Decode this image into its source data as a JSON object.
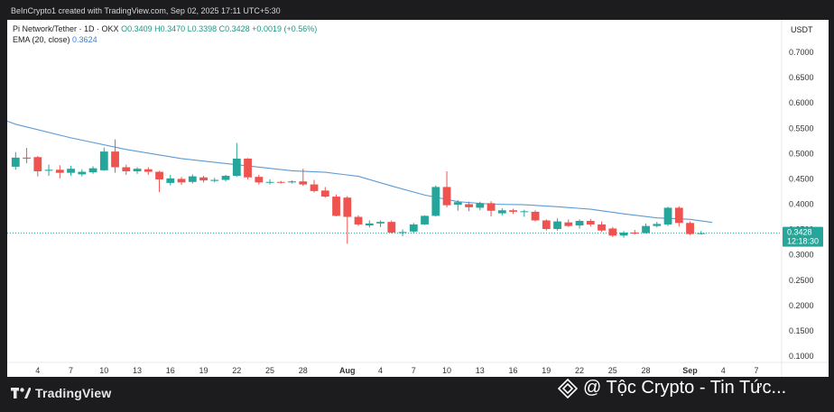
{
  "header": {
    "source_line": "BeInCrypto1 created with TradingView.com, Sep 02, 2025 17:11 UTC+5:30",
    "currency": "USDT"
  },
  "legend": {
    "symbol": "Pi Network/Tether · 1D · OKX",
    "ohlc": "O0.3409 H0.3470 L0.3398 C0.3428 +0.0019 (+0.56%)",
    "ema_label": "EMA (20, close)",
    "ema_value": "0.3624"
  },
  "price_tag": {
    "price": "0.3428",
    "countdown": "12:18:30"
  },
  "footer": {
    "brand": "TradingView",
    "watermark": "@ Tộc Crypto - Tin Tức..."
  },
  "colors": {
    "up": "#26a69a",
    "down": "#ef5350",
    "ema": "#5b9bd5",
    "price_line": "#26a69a"
  },
  "chart_data": {
    "type": "candlestick",
    "pair": "PI/USDT",
    "interval": "1D",
    "ylim": [
      0.09,
      0.77
    ],
    "y_ticks": [
      "0.1000",
      "0.1500",
      "0.2000",
      "0.2500",
      "0.3000",
      "0.3500",
      "0.4000",
      "0.4500",
      "0.5000",
      "0.5500",
      "0.6000",
      "0.6500",
      "0.7000"
    ],
    "x_ticks": [
      {
        "label": "4",
        "index": 2
      },
      {
        "label": "7",
        "index": 5
      },
      {
        "label": "10",
        "index": 8
      },
      {
        "label": "13",
        "index": 11
      },
      {
        "label": "16",
        "index": 14
      },
      {
        "label": "19",
        "index": 17
      },
      {
        "label": "22",
        "index": 20
      },
      {
        "label": "25",
        "index": 23
      },
      {
        "label": "28",
        "index": 26
      },
      {
        "label": "Aug",
        "index": 30
      },
      {
        "label": "4",
        "index": 33
      },
      {
        "label": "7",
        "index": 36
      },
      {
        "label": "10",
        "index": 39
      },
      {
        "label": "13",
        "index": 42
      },
      {
        "label": "16",
        "index": 45
      },
      {
        "label": "19",
        "index": 48
      },
      {
        "label": "22",
        "index": 51
      },
      {
        "label": "25",
        "index": 54
      },
      {
        "label": "28",
        "index": 57
      },
      {
        "label": "Sep",
        "index": 61
      },
      {
        "label": "4",
        "index": 64
      },
      {
        "label": "7",
        "index": 67
      }
    ],
    "candles": [
      {
        "o": 0.474,
        "h": 0.503,
        "l": 0.468,
        "c": 0.492
      },
      {
        "o": 0.492,
        "h": 0.511,
        "l": 0.481,
        "c": 0.49
      },
      {
        "o": 0.493,
        "h": 0.495,
        "l": 0.455,
        "c": 0.465
      },
      {
        "o": 0.466,
        "h": 0.478,
        "l": 0.456,
        "c": 0.468
      },
      {
        "o": 0.468,
        "h": 0.477,
        "l": 0.451,
        "c": 0.462
      },
      {
        "o": 0.462,
        "h": 0.476,
        "l": 0.456,
        "c": 0.47
      },
      {
        "o": 0.459,
        "h": 0.469,
        "l": 0.455,
        "c": 0.464
      },
      {
        "o": 0.463,
        "h": 0.475,
        "l": 0.46,
        "c": 0.471
      },
      {
        "o": 0.467,
        "h": 0.512,
        "l": 0.466,
        "c": 0.504
      },
      {
        "o": 0.504,
        "h": 0.528,
        "l": 0.462,
        "c": 0.473
      },
      {
        "o": 0.473,
        "h": 0.478,
        "l": 0.458,
        "c": 0.465
      },
      {
        "o": 0.465,
        "h": 0.473,
        "l": 0.46,
        "c": 0.47
      },
      {
        "o": 0.469,
        "h": 0.473,
        "l": 0.458,
        "c": 0.464
      },
      {
        "o": 0.464,
        "h": 0.466,
        "l": 0.424,
        "c": 0.449
      },
      {
        "o": 0.442,
        "h": 0.458,
        "l": 0.437,
        "c": 0.451
      },
      {
        "o": 0.45,
        "h": 0.454,
        "l": 0.438,
        "c": 0.443
      },
      {
        "o": 0.444,
        "h": 0.459,
        "l": 0.441,
        "c": 0.455
      },
      {
        "o": 0.453,
        "h": 0.456,
        "l": 0.443,
        "c": 0.447
      },
      {
        "o": 0.446,
        "h": 0.452,
        "l": 0.443,
        "c": 0.448
      },
      {
        "o": 0.448,
        "h": 0.458,
        "l": 0.445,
        "c": 0.456
      },
      {
        "o": 0.456,
        "h": 0.521,
        "l": 0.454,
        "c": 0.49
      },
      {
        "o": 0.49,
        "h": 0.491,
        "l": 0.449,
        "c": 0.453
      },
      {
        "o": 0.454,
        "h": 0.458,
        "l": 0.439,
        "c": 0.443
      },
      {
        "o": 0.443,
        "h": 0.449,
        "l": 0.439,
        "c": 0.444
      },
      {
        "o": 0.444,
        "h": 0.446,
        "l": 0.441,
        "c": 0.443
      },
      {
        "o": 0.443,
        "h": 0.447,
        "l": 0.441,
        "c": 0.445
      },
      {
        "o": 0.445,
        "h": 0.47,
        "l": 0.436,
        "c": 0.439
      },
      {
        "o": 0.439,
        "h": 0.448,
        "l": 0.423,
        "c": 0.426
      },
      {
        "o": 0.427,
        "h": 0.434,
        "l": 0.413,
        "c": 0.415
      },
      {
        "o": 0.415,
        "h": 0.419,
        "l": 0.376,
        "c": 0.377
      },
      {
        "o": 0.413,
        "h": 0.416,
        "l": 0.322,
        "c": 0.375
      },
      {
        "o": 0.375,
        "h": 0.378,
        "l": 0.357,
        "c": 0.36
      },
      {
        "o": 0.358,
        "h": 0.368,
        "l": 0.354,
        "c": 0.362
      },
      {
        "o": 0.362,
        "h": 0.368,
        "l": 0.355,
        "c": 0.365
      },
      {
        "o": 0.365,
        "h": 0.368,
        "l": 0.342,
        "c": 0.344
      },
      {
        "o": 0.343,
        "h": 0.35,
        "l": 0.337,
        "c": 0.345
      },
      {
        "o": 0.346,
        "h": 0.363,
        "l": 0.344,
        "c": 0.36
      },
      {
        "o": 0.36,
        "h": 0.378,
        "l": 0.359,
        "c": 0.377
      },
      {
        "o": 0.377,
        "h": 0.437,
        "l": 0.376,
        "c": 0.434
      },
      {
        "o": 0.434,
        "h": 0.465,
        "l": 0.394,
        "c": 0.398
      },
      {
        "o": 0.399,
        "h": 0.408,
        "l": 0.387,
        "c": 0.404
      },
      {
        "o": 0.4,
        "h": 0.405,
        "l": 0.386,
        "c": 0.394
      },
      {
        "o": 0.393,
        "h": 0.405,
        "l": 0.388,
        "c": 0.402
      },
      {
        "o": 0.402,
        "h": 0.406,
        "l": 0.376,
        "c": 0.387
      },
      {
        "o": 0.382,
        "h": 0.392,
        "l": 0.378,
        "c": 0.388
      },
      {
        "o": 0.388,
        "h": 0.391,
        "l": 0.381,
        "c": 0.385
      },
      {
        "o": 0.385,
        "h": 0.389,
        "l": 0.375,
        "c": 0.386
      },
      {
        "o": 0.385,
        "h": 0.388,
        "l": 0.366,
        "c": 0.368
      },
      {
        "o": 0.368,
        "h": 0.37,
        "l": 0.348,
        "c": 0.351
      },
      {
        "o": 0.351,
        "h": 0.372,
        "l": 0.348,
        "c": 0.366
      },
      {
        "o": 0.364,
        "h": 0.37,
        "l": 0.355,
        "c": 0.357
      },
      {
        "o": 0.358,
        "h": 0.37,
        "l": 0.352,
        "c": 0.367
      },
      {
        "o": 0.367,
        "h": 0.371,
        "l": 0.356,
        "c": 0.36
      },
      {
        "o": 0.36,
        "h": 0.366,
        "l": 0.345,
        "c": 0.348
      },
      {
        "o": 0.352,
        "h": 0.355,
        "l": 0.335,
        "c": 0.338
      },
      {
        "o": 0.338,
        "h": 0.347,
        "l": 0.334,
        "c": 0.344
      },
      {
        "o": 0.344,
        "h": 0.349,
        "l": 0.34,
        "c": 0.342
      },
      {
        "o": 0.343,
        "h": 0.362,
        "l": 0.342,
        "c": 0.357
      },
      {
        "o": 0.357,
        "h": 0.365,
        "l": 0.354,
        "c": 0.361
      },
      {
        "o": 0.36,
        "h": 0.395,
        "l": 0.357,
        "c": 0.393
      },
      {
        "o": 0.393,
        "h": 0.396,
        "l": 0.356,
        "c": 0.363
      },
      {
        "o": 0.363,
        "h": 0.366,
        "l": 0.339,
        "c": 0.341
      },
      {
        "o": 0.341,
        "h": 0.347,
        "l": 0.34,
        "c": 0.343
      }
    ],
    "ema": {
      "name": "EMA (20, close)",
      "indices": [
        0,
        5,
        10,
        15,
        20,
        25,
        28,
        31,
        34,
        37,
        40,
        43,
        46,
        49,
        52,
        55,
        58,
        61,
        63
      ],
      "values": [
        0.558,
        0.531,
        0.508,
        0.49,
        0.478,
        0.466,
        0.463,
        0.455,
        0.436,
        0.418,
        0.405,
        0.4,
        0.399,
        0.395,
        0.39,
        0.381,
        0.373,
        0.37,
        0.364
      ]
    },
    "last_price": 0.3428
  }
}
